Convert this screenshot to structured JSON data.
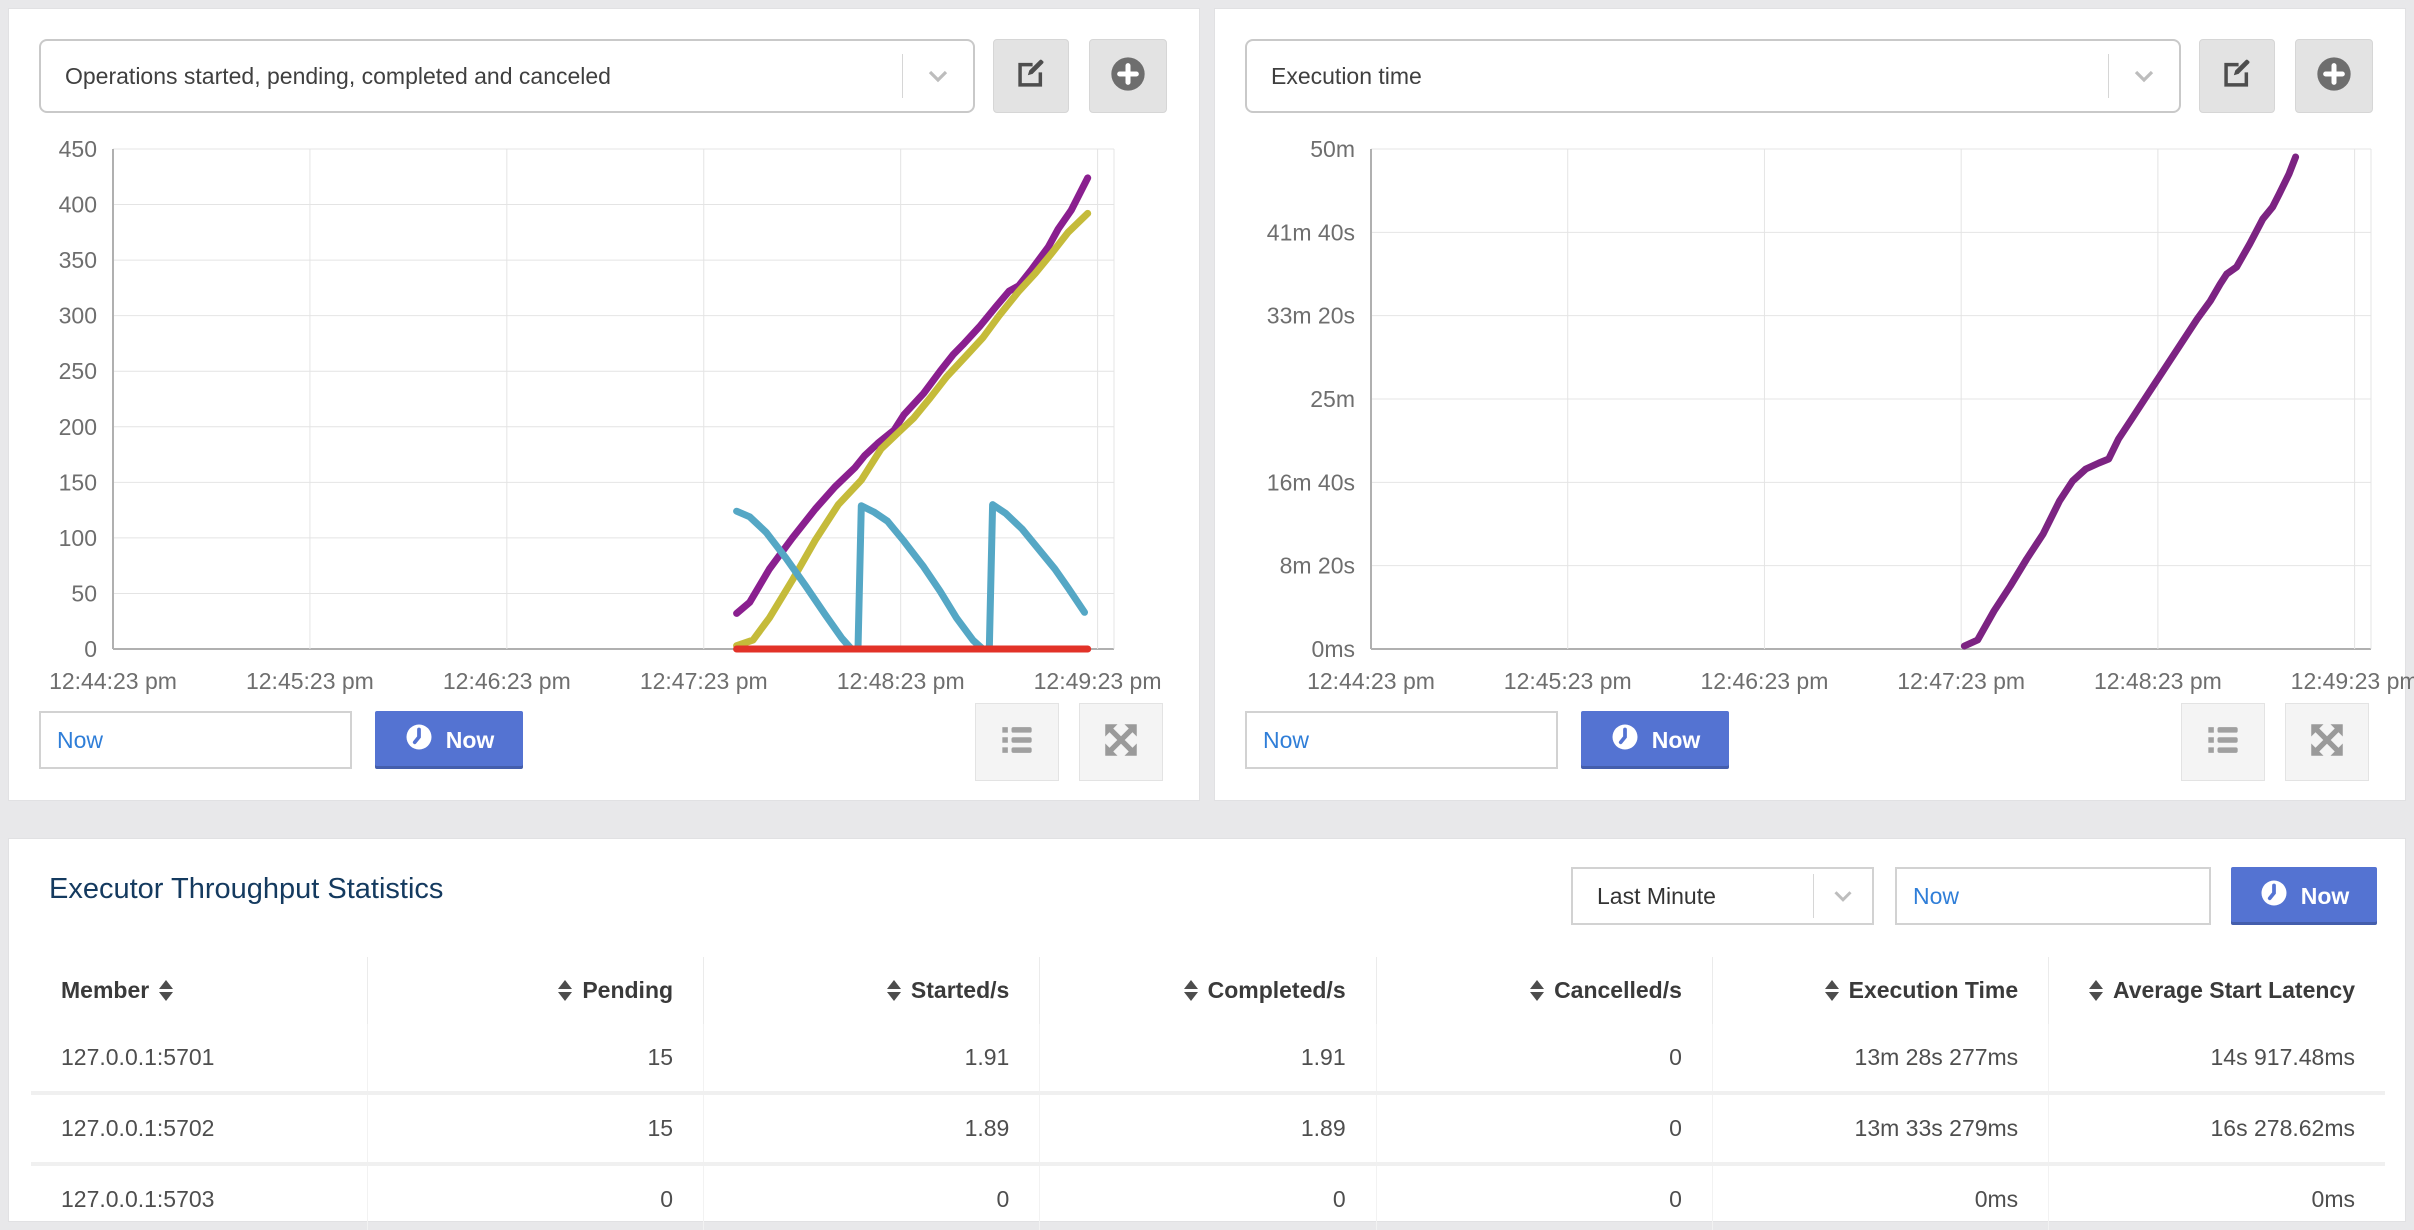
{
  "panels": {
    "left": {
      "selector_value": "Operations started, pending, completed and canceled",
      "time_input_value": "Now",
      "now_button_label": "Now"
    },
    "right": {
      "selector_value": "Execution time",
      "time_input_value": "Now",
      "now_button_label": "Now"
    }
  },
  "bottom": {
    "title": "Executor Throughput Statistics",
    "period_select_value": "Last Minute",
    "time_input_value": "Now",
    "now_button_label": "Now"
  },
  "icons": {
    "chevron_down": "chevron-down",
    "edit": "pencil-square",
    "add": "plus-circle",
    "clock": "clock",
    "list": "list-bullets",
    "expand": "arrows-out",
    "sort": "up-down-triangles"
  },
  "colors": {
    "accent_blue": "#5473d2",
    "link_blue": "#2f7ed8",
    "title_navy": "#143a5f",
    "series_purple": "#8a1f8f",
    "series_yellow": "#c5bb3a",
    "series_teal": "#55a7c5",
    "series_red": "#e23228",
    "series_exec_purple": "#7c2382"
  },
  "chart_data": [
    {
      "type": "line",
      "panel": "left",
      "title": "Operations started, pending, completed and canceled",
      "xlabel": "",
      "ylabel": "",
      "grid": true,
      "legend": "none",
      "x_domain_seconds": [
        0,
        305
      ],
      "x_ticks": [
        {
          "seconds": 0,
          "label": "12:44:23 pm"
        },
        {
          "seconds": 60,
          "label": "12:45:23 pm"
        },
        {
          "seconds": 120,
          "label": "12:46:23 pm"
        },
        {
          "seconds": 180,
          "label": "12:47:23 pm"
        },
        {
          "seconds": 240,
          "label": "12:48:23 pm"
        },
        {
          "seconds": 300,
          "label": "12:49:23 pm"
        }
      ],
      "ylim": [
        0,
        450
      ],
      "y_ticks": [
        {
          "value": 0,
          "label": "0"
        },
        {
          "value": 50,
          "label": "50"
        },
        {
          "value": 100,
          "label": "100"
        },
        {
          "value": 150,
          "label": "150"
        },
        {
          "value": 200,
          "label": "200"
        },
        {
          "value": 250,
          "label": "250"
        },
        {
          "value": 300,
          "label": "300"
        },
        {
          "value": 350,
          "label": "350"
        },
        {
          "value": 400,
          "label": "400"
        },
        {
          "value": 450,
          "label": "450"
        }
      ],
      "series": [
        {
          "name": "started",
          "color": "#8a1f8f",
          "points": [
            [
              190,
              32
            ],
            [
              194,
              42
            ],
            [
              200,
              72
            ],
            [
              207,
              100
            ],
            [
              214,
              126
            ],
            [
              220,
              146
            ],
            [
              226,
              163
            ],
            [
              229,
              174
            ],
            [
              233,
              185
            ],
            [
              238,
              197
            ],
            [
              241,
              211
            ],
            [
              247,
              230
            ],
            [
              252,
              250
            ],
            [
              256,
              265
            ],
            [
              259,
              274
            ],
            [
              264,
              290
            ],
            [
              269,
              308
            ],
            [
              273,
              322
            ],
            [
              276,
              327
            ],
            [
              280,
              342
            ],
            [
              285,
              362
            ],
            [
              288,
              378
            ],
            [
              292,
              395
            ],
            [
              297,
              424
            ]
          ]
        },
        {
          "name": "completed",
          "color": "#c5bb3a",
          "points": [
            [
              190,
              3
            ],
            [
              195,
              8
            ],
            [
              200,
              28
            ],
            [
              207,
              62
            ],
            [
              214,
              98
            ],
            [
              221,
              130
            ],
            [
              228,
              152
            ],
            [
              234,
              180
            ],
            [
              239,
              194
            ],
            [
              244,
              208
            ],
            [
              249,
              226
            ],
            [
              254,
              245
            ],
            [
              260,
              264
            ],
            [
              265,
              280
            ],
            [
              270,
              300
            ],
            [
              276,
              322
            ],
            [
              281,
              338
            ],
            [
              286,
              356
            ],
            [
              291,
              375
            ],
            [
              297,
              392
            ]
          ]
        },
        {
          "name": "pending",
          "color": "#55a7c5",
          "points": [
            [
              190,
              124
            ],
            [
              194,
              119
            ],
            [
              199,
              105
            ],
            [
              205,
              82
            ],
            [
              211,
              57
            ],
            [
              217,
              31
            ],
            [
              222,
              10
            ],
            [
              225,
              0
            ],
            [
              227,
              0
            ],
            [
              228,
              129
            ],
            [
              232,
              123
            ],
            [
              236,
              115
            ],
            [
              241,
              97
            ],
            [
              247,
              74
            ],
            [
              252,
              52
            ],
            [
              257,
              28
            ],
            [
              262,
              8
            ],
            [
              265,
              0
            ],
            [
              267,
              0
            ],
            [
              268,
              130
            ],
            [
              272,
              122
            ],
            [
              277,
              108
            ],
            [
              282,
              90
            ],
            [
              287,
              72
            ],
            [
              291,
              55
            ],
            [
              296,
              33
            ]
          ]
        },
        {
          "name": "canceled",
          "color": "#e23228",
          "points": [
            [
              190,
              0
            ],
            [
              297,
              0
            ]
          ]
        }
      ]
    },
    {
      "type": "line",
      "panel": "right",
      "title": "Execution time",
      "xlabel": "",
      "ylabel": "",
      "grid": true,
      "legend": "none",
      "x_domain_seconds": [
        0,
        305
      ],
      "x_ticks": [
        {
          "seconds": 0,
          "label": "12:44:23 pm"
        },
        {
          "seconds": 60,
          "label": "12:45:23 pm"
        },
        {
          "seconds": 120,
          "label": "12:46:23 pm"
        },
        {
          "seconds": 180,
          "label": "12:47:23 pm"
        },
        {
          "seconds": 240,
          "label": "12:48:23 pm"
        },
        {
          "seconds": 300,
          "label": "12:49:23 pm"
        }
      ],
      "ylim": [
        0,
        50
      ],
      "y_ticks": [
        {
          "value": 0,
          "label": "0ms"
        },
        {
          "value": 8.333,
          "label": "8m 20s"
        },
        {
          "value": 16.667,
          "label": "16m 40s"
        },
        {
          "value": 25,
          "label": "25m"
        },
        {
          "value": 33.333,
          "label": "33m 20s"
        },
        {
          "value": 41.667,
          "label": "41m 40s"
        },
        {
          "value": 50,
          "label": "50m"
        }
      ],
      "series": [
        {
          "name": "execution-time",
          "color": "#7c2382",
          "points": [
            [
              181,
              0.3
            ],
            [
              185,
              0.9
            ],
            [
              190,
              3.8
            ],
            [
              195,
              6.3
            ],
            [
              200,
              9.0
            ],
            [
              205,
              11.5
            ],
            [
              210,
              14.8
            ],
            [
              214,
              16.8
            ],
            [
              218,
              18.0
            ],
            [
              222,
              18.6
            ],
            [
              225,
              19.0
            ],
            [
              228,
              21.0
            ],
            [
              232,
              23.0
            ],
            [
              237,
              25.5
            ],
            [
              242,
              28.0
            ],
            [
              247,
              30.5
            ],
            [
              252,
              33.0
            ],
            [
              256,
              34.8
            ],
            [
              259,
              36.5
            ],
            [
              261,
              37.5
            ],
            [
              264,
              38.2
            ],
            [
              268,
              40.5
            ],
            [
              272,
              43.0
            ],
            [
              275,
              44.2
            ],
            [
              277,
              45.5
            ],
            [
              280,
              47.5
            ],
            [
              282,
              49.2
            ]
          ]
        }
      ]
    }
  ],
  "table": {
    "columns": [
      {
        "label": "Member",
        "align": "left"
      },
      {
        "label": "Pending",
        "align": "right"
      },
      {
        "label": "Started/s",
        "align": "right"
      },
      {
        "label": "Completed/s",
        "align": "right"
      },
      {
        "label": "Cancelled/s",
        "align": "right"
      },
      {
        "label": "Execution Time",
        "align": "right"
      },
      {
        "label": "Average Start Latency",
        "align": "right"
      }
    ],
    "rows": [
      [
        "127.0.0.1:5701",
        "15",
        "1.91",
        "1.91",
        "0",
        "13m 28s 277ms",
        "14s 917.48ms"
      ],
      [
        "127.0.0.1:5702",
        "15",
        "1.89",
        "1.89",
        "0",
        "13m 33s 279ms",
        "16s 278.62ms"
      ],
      [
        "127.0.0.1:5703",
        "0",
        "0",
        "0",
        "0",
        "0ms",
        "0ms"
      ]
    ]
  }
}
